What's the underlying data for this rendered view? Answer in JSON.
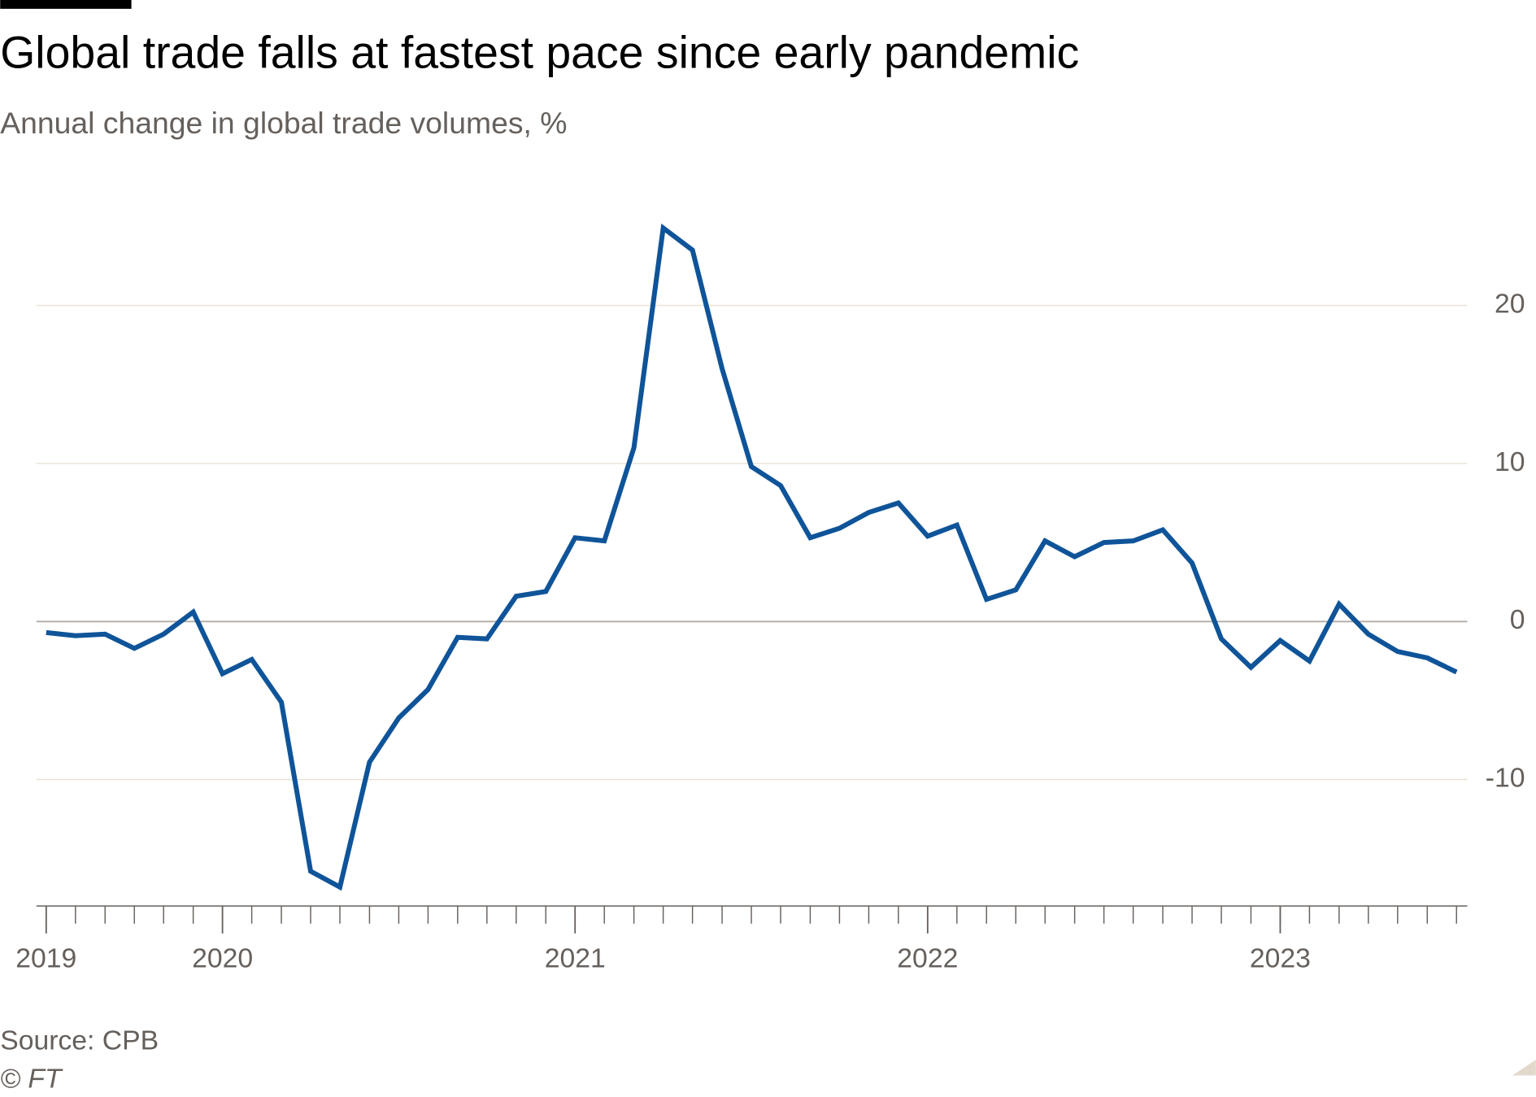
{
  "chart_data": {
    "type": "line",
    "title": "Global trade falls at fastest pace since early pandemic",
    "subtitle": "Annual change in global trade volumes, %",
    "source": "Source: CPB",
    "credit": "© FT",
    "color": "#0f5499",
    "grid": true,
    "x": [
      2019.5,
      2019.583,
      2019.667,
      2019.75,
      2019.833,
      2019.917,
      2020,
      2020.083,
      2020.167,
      2020.25,
      2020.333,
      2020.417,
      2020.5,
      2020.583,
      2020.667,
      2020.75,
      2020.833,
      2020.917,
      2021,
      2021.083,
      2021.167,
      2021.25,
      2021.333,
      2021.417,
      2021.5,
      2021.583,
      2021.667,
      2021.75,
      2021.833,
      2021.917,
      2022,
      2022.083,
      2022.167,
      2022.25,
      2022.333,
      2022.417,
      2022.5,
      2022.583,
      2022.667,
      2022.75,
      2022.833,
      2022.917,
      2023,
      2023.083,
      2023.167,
      2023.25,
      2023.333,
      2023.417,
      2023.5
    ],
    "values": [
      -0.7,
      -0.9,
      -0.8,
      -1.7,
      -0.8,
      0.6,
      -3.3,
      -2.4,
      -5.1,
      -15.8,
      -16.8,
      -8.9,
      -6.1,
      -4.3,
      -1.0,
      -1.1,
      1.6,
      1.9,
      5.3,
      5.1,
      11.0,
      24.9,
      23.5,
      16.0,
      9.8,
      8.6,
      5.3,
      5.9,
      6.9,
      7.5,
      5.4,
      6.1,
      1.4,
      2.0,
      5.1,
      4.1,
      5.0,
      5.1,
      5.8,
      3.7,
      -1.1,
      -2.9,
      -1.2,
      -2.5,
      1.1,
      -0.8,
      -1.9,
      -2.3,
      -3.2
    ],
    "xlim": [
      2019.5,
      2023.5
    ],
    "xticks": [
      {
        "value": 2019.5,
        "label": "2019"
      },
      2020,
      2021,
      2022,
      2023
    ],
    "ylim": [
      -18,
      26
    ],
    "yticks": [
      -10,
      0,
      10,
      20
    ]
  }
}
